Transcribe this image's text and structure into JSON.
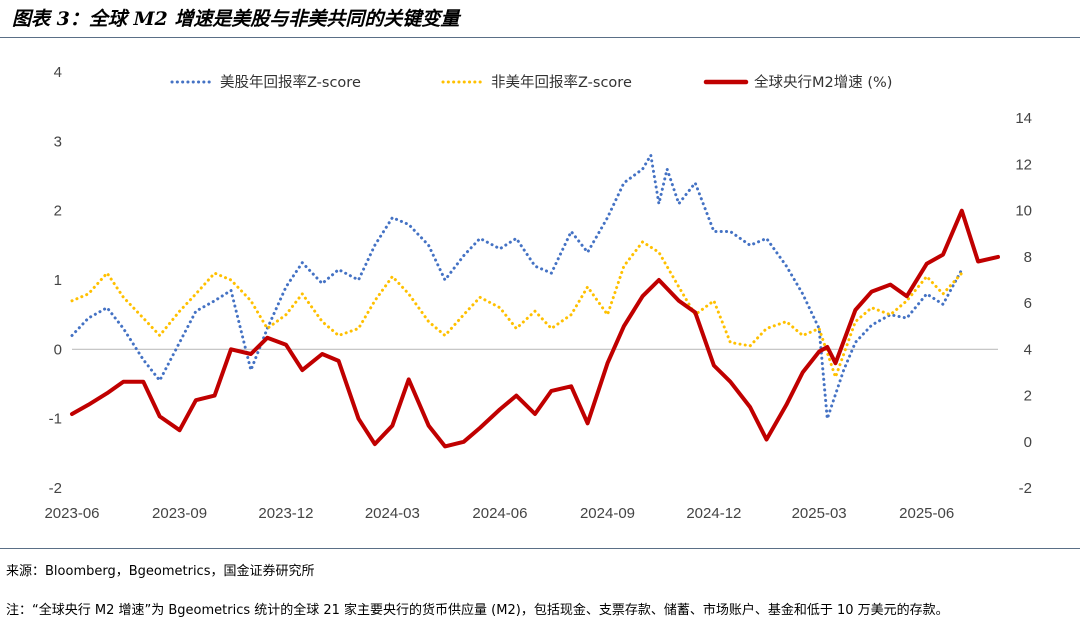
{
  "title": "图表 3：全球 M2 增速是美股与非美共同的关键变量",
  "source": "来源：Bloomberg，Bgeometrics，国金证券研究所",
  "note": "注：“全球央行 M2 增速”为 Bgeometrics 统计的全球 21 家主要央行的货币供应量 (M2)，包括现金、支票存款、储蓄、市场账户、基金和低于 10 万美元的存款。",
  "chart_data": {
    "type": "line",
    "x_tick_labels": [
      "2023-06",
      "2023-09",
      "2023-12",
      "2024-03",
      "2024-06",
      "2024-09",
      "2024-12",
      "2025-03",
      "2025-06"
    ],
    "y_left": {
      "ticks": [
        4,
        3,
        2,
        1,
        0,
        -1,
        -2
      ],
      "range": [
        -2,
        4
      ]
    },
    "y_right": {
      "ticks": [
        14,
        12,
        10,
        8,
        6,
        4,
        2,
        0,
        -2
      ],
      "range": [
        -2,
        16
      ]
    },
    "x_range": [
      "2023-06-01",
      "2025-08-01"
    ],
    "legend_placement": "top",
    "series": [
      {
        "name": "美股年回报率Z-score",
        "axis": "left",
        "style": "dotted",
        "color": "#4472c4",
        "points": [
          [
            "2023-06-01",
            0.2
          ],
          [
            "2023-06-15",
            0.45
          ],
          [
            "2023-07-01",
            0.6
          ],
          [
            "2023-07-15",
            0.3
          ],
          [
            "2023-08-01",
            -0.15
          ],
          [
            "2023-08-15",
            -0.45
          ],
          [
            "2023-09-01",
            0.1
          ],
          [
            "2023-09-15",
            0.55
          ],
          [
            "2023-10-01",
            0.7
          ],
          [
            "2023-10-15",
            0.85
          ],
          [
            "2023-11-01",
            -0.3
          ],
          [
            "2023-11-15",
            0.3
          ],
          [
            "2023-12-01",
            0.9
          ],
          [
            "2023-12-15",
            1.25
          ],
          [
            "2024-01-01",
            0.95
          ],
          [
            "2024-01-15",
            1.15
          ],
          [
            "2024-02-01",
            1.0
          ],
          [
            "2024-02-15",
            1.5
          ],
          [
            "2024-03-01",
            1.9
          ],
          [
            "2024-03-15",
            1.8
          ],
          [
            "2024-04-01",
            1.5
          ],
          [
            "2024-04-15",
            1.0
          ],
          [
            "2024-05-01",
            1.35
          ],
          [
            "2024-05-15",
            1.6
          ],
          [
            "2024-06-01",
            1.45
          ],
          [
            "2024-06-15",
            1.6
          ],
          [
            "2024-07-01",
            1.2
          ],
          [
            "2024-07-15",
            1.1
          ],
          [
            "2024-08-01",
            1.7
          ],
          [
            "2024-08-15",
            1.4
          ],
          [
            "2024-09-01",
            1.9
          ],
          [
            "2024-09-15",
            2.4
          ],
          [
            "2024-10-01",
            2.6
          ],
          [
            "2024-10-08",
            2.8
          ],
          [
            "2024-10-15",
            2.1
          ],
          [
            "2024-10-22",
            2.6
          ],
          [
            "2024-11-01",
            2.1
          ],
          [
            "2024-11-15",
            2.4
          ],
          [
            "2024-12-01",
            1.7
          ],
          [
            "2024-12-15",
            1.7
          ],
          [
            "2025-01-01",
            1.5
          ],
          [
            "2025-01-15",
            1.6
          ],
          [
            "2025-02-01",
            1.2
          ],
          [
            "2025-02-15",
            0.8
          ],
          [
            "2025-03-01",
            0.3
          ],
          [
            "2025-03-08",
            -1.0
          ],
          [
            "2025-03-22",
            -0.3
          ],
          [
            "2025-04-01",
            0.1
          ],
          [
            "2025-04-15",
            0.35
          ],
          [
            "2025-05-01",
            0.5
          ],
          [
            "2025-05-15",
            0.45
          ],
          [
            "2025-06-01",
            0.8
          ],
          [
            "2025-06-15",
            0.65
          ],
          [
            "2025-07-01",
            1.15
          ]
        ]
      },
      {
        "name": "非美年回报率Z-score",
        "axis": "left",
        "style": "dotted",
        "color": "#ffc000",
        "points": [
          [
            "2023-06-01",
            0.7
          ],
          [
            "2023-06-15",
            0.8
          ],
          [
            "2023-07-01",
            1.1
          ],
          [
            "2023-07-15",
            0.75
          ],
          [
            "2023-08-01",
            0.45
          ],
          [
            "2023-08-15",
            0.2
          ],
          [
            "2023-09-01",
            0.55
          ],
          [
            "2023-09-15",
            0.8
          ],
          [
            "2023-10-01",
            1.1
          ],
          [
            "2023-10-15",
            1.0
          ],
          [
            "2023-11-01",
            0.7
          ],
          [
            "2023-11-15",
            0.3
          ],
          [
            "2023-12-01",
            0.5
          ],
          [
            "2023-12-15",
            0.8
          ],
          [
            "2024-01-01",
            0.4
          ],
          [
            "2024-01-15",
            0.2
          ],
          [
            "2024-02-01",
            0.3
          ],
          [
            "2024-02-15",
            0.7
          ],
          [
            "2024-03-01",
            1.05
          ],
          [
            "2024-03-15",
            0.8
          ],
          [
            "2024-04-01",
            0.4
          ],
          [
            "2024-04-15",
            0.2
          ],
          [
            "2024-05-01",
            0.5
          ],
          [
            "2024-05-15",
            0.75
          ],
          [
            "2024-06-01",
            0.6
          ],
          [
            "2024-06-15",
            0.3
          ],
          [
            "2024-07-01",
            0.55
          ],
          [
            "2024-07-15",
            0.3
          ],
          [
            "2024-08-01",
            0.5
          ],
          [
            "2024-08-15",
            0.9
          ],
          [
            "2024-09-01",
            0.5
          ],
          [
            "2024-09-15",
            1.2
          ],
          [
            "2024-10-01",
            1.55
          ],
          [
            "2024-10-15",
            1.4
          ],
          [
            "2024-11-01",
            0.9
          ],
          [
            "2024-11-15",
            0.5
          ],
          [
            "2024-12-01",
            0.7
          ],
          [
            "2024-12-15",
            0.1
          ],
          [
            "2025-01-01",
            0.05
          ],
          [
            "2025-01-15",
            0.3
          ],
          [
            "2025-02-01",
            0.4
          ],
          [
            "2025-02-15",
            0.2
          ],
          [
            "2025-03-01",
            0.3
          ],
          [
            "2025-03-15",
            -0.4
          ],
          [
            "2025-04-01",
            0.4
          ],
          [
            "2025-04-15",
            0.6
          ],
          [
            "2025-05-01",
            0.5
          ],
          [
            "2025-05-15",
            0.7
          ],
          [
            "2025-06-01",
            1.05
          ],
          [
            "2025-06-15",
            0.8
          ],
          [
            "2025-07-01",
            1.1
          ]
        ]
      },
      {
        "name": "全球央行M2增速 (%)",
        "axis": "right",
        "style": "solid",
        "color": "#c00000",
        "points": [
          [
            "2023-06-01",
            1.2
          ],
          [
            "2023-06-15",
            1.6
          ],
          [
            "2023-07-01",
            2.1
          ],
          [
            "2023-07-15",
            2.6
          ],
          [
            "2023-08-01",
            2.6
          ],
          [
            "2023-08-15",
            1.1
          ],
          [
            "2023-09-01",
            0.5
          ],
          [
            "2023-09-15",
            1.8
          ],
          [
            "2023-10-01",
            2.0
          ],
          [
            "2023-10-15",
            4.0
          ],
          [
            "2023-11-01",
            3.8
          ],
          [
            "2023-11-15",
            4.5
          ],
          [
            "2023-12-01",
            4.2
          ],
          [
            "2023-12-15",
            3.1
          ],
          [
            "2024-01-01",
            3.8
          ],
          [
            "2024-01-15",
            3.5
          ],
          [
            "2024-02-01",
            1.0
          ],
          [
            "2024-02-15",
            -0.1
          ],
          [
            "2024-03-01",
            0.7
          ],
          [
            "2024-03-15",
            2.7
          ],
          [
            "2024-04-01",
            0.7
          ],
          [
            "2024-04-15",
            -0.2
          ],
          [
            "2024-05-01",
            0.0
          ],
          [
            "2024-05-15",
            0.6
          ],
          [
            "2024-06-01",
            1.4
          ],
          [
            "2024-06-15",
            2.0
          ],
          [
            "2024-07-01",
            1.2
          ],
          [
            "2024-07-15",
            2.2
          ],
          [
            "2024-08-01",
            2.4
          ],
          [
            "2024-08-15",
            0.8
          ],
          [
            "2024-09-01",
            3.4
          ],
          [
            "2024-09-15",
            5.0
          ],
          [
            "2024-10-01",
            6.3
          ],
          [
            "2024-10-15",
            7.0
          ],
          [
            "2024-11-01",
            6.1
          ],
          [
            "2024-11-15",
            5.6
          ],
          [
            "2024-12-01",
            3.3
          ],
          [
            "2024-12-15",
            2.6
          ],
          [
            "2025-01-01",
            1.5
          ],
          [
            "2025-01-15",
            0.1
          ],
          [
            "2025-02-01",
            1.6
          ],
          [
            "2025-02-15",
            3.0
          ],
          [
            "2025-03-01",
            3.9
          ],
          [
            "2025-03-08",
            4.1
          ],
          [
            "2025-03-15",
            3.4
          ],
          [
            "2025-04-01",
            5.7
          ],
          [
            "2025-04-15",
            6.5
          ],
          [
            "2025-05-01",
            6.8
          ],
          [
            "2025-05-15",
            6.3
          ],
          [
            "2025-06-01",
            7.7
          ],
          [
            "2025-06-15",
            8.1
          ],
          [
            "2025-07-01",
            10.0
          ],
          [
            "2025-07-15",
            7.8
          ],
          [
            "2025-08-01",
            8.0
          ]
        ]
      }
    ]
  }
}
